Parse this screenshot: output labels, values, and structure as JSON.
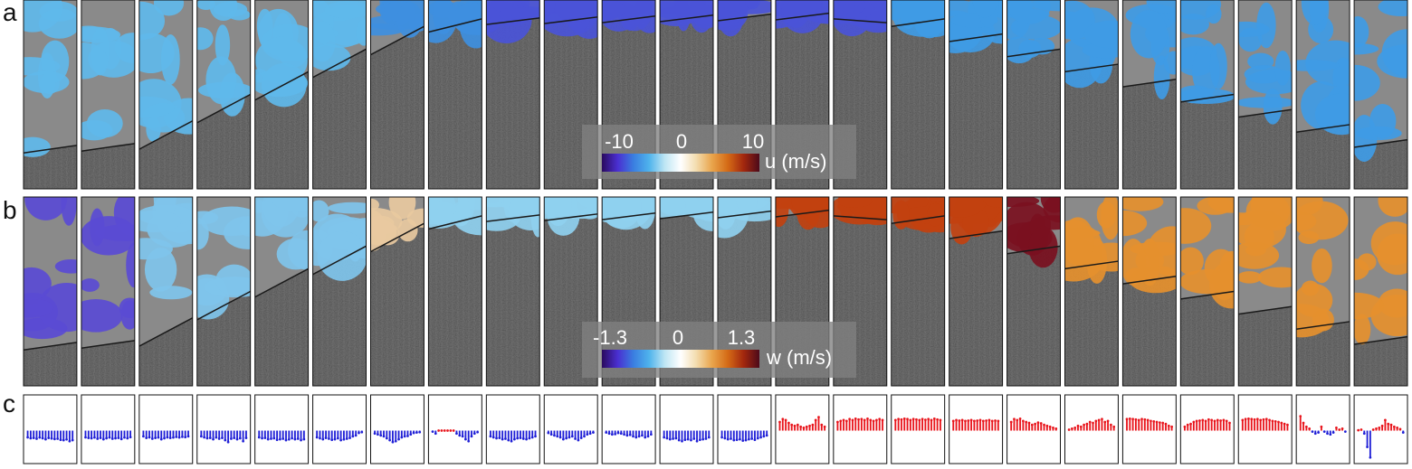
{
  "figure": {
    "panels": [
      "a",
      "b",
      "c"
    ],
    "frame_count": 24
  },
  "colormap": [
    "#2a0a5e",
    "#4a2fd1",
    "#3a7ee0",
    "#4fb3ec",
    "#bfe6f4",
    "#ffffff",
    "#f3dcae",
    "#e9a44b",
    "#d46a16",
    "#a2270e",
    "#4d0a1a"
  ],
  "colorbars": {
    "u": {
      "ticks": [
        "-10",
        "0",
        "10"
      ],
      "unit": "u (m/s)",
      "range": [
        -10,
        10
      ]
    },
    "w": {
      "ticks": [
        "-1.3",
        "0",
        "1.3"
      ],
      "unit": "w (m/s)",
      "range": [
        -1.3,
        1.3
      ]
    }
  },
  "chart_data": {
    "type": "bar",
    "title": "",
    "xlabel": "",
    "ylabel": "",
    "grid": false,
    "positive_color": "#e8141b",
    "negative_color": "#1f1fd6",
    "frames": [
      {
        "values": [
          -0.35,
          -0.4,
          -0.38,
          -0.42,
          -0.36,
          -0.4,
          -0.45,
          -0.38,
          -0.41,
          -0.44,
          -0.42,
          -0.48,
          -0.5,
          -0.46,
          -0.55,
          -0.5
        ]
      },
      {
        "values": [
          -0.35,
          -0.38,
          -0.4,
          -0.36,
          -0.42,
          -0.38,
          -0.45,
          -0.4,
          -0.36,
          -0.42,
          -0.4,
          -0.38,
          -0.44,
          -0.36,
          -0.4,
          -0.34
        ]
      },
      {
        "values": [
          -0.3,
          -0.38,
          -0.35,
          -0.42,
          -0.38,
          -0.36,
          -0.45,
          -0.4,
          -0.35,
          -0.38,
          -0.36,
          -0.33,
          -0.36,
          -0.32,
          -0.34,
          -0.3
        ]
      },
      {
        "values": [
          -0.3,
          -0.35,
          -0.4,
          -0.38,
          -0.45,
          -0.36,
          -0.42,
          -0.38,
          -0.5,
          -0.6,
          -0.42,
          -0.38,
          -0.45,
          -0.4,
          -0.55,
          -0.38
        ]
      },
      {
        "values": [
          -0.35,
          -0.4,
          -0.38,
          -0.45,
          -0.42,
          -0.4,
          -0.48,
          -0.45,
          -0.42,
          -0.5,
          -0.46,
          -0.4,
          -0.45,
          -0.42,
          -0.5,
          -0.45
        ]
      },
      {
        "values": [
          -0.35,
          -0.4,
          -0.45,
          -0.38,
          -0.42,
          -0.48,
          -0.45,
          -0.4,
          -0.5,
          -0.46,
          -0.42,
          -0.38,
          -0.3,
          -0.25,
          -0.12,
          -0.08
        ]
      },
      {
        "values": [
          -0.15,
          -0.2,
          -0.25,
          -0.3,
          -0.4,
          -0.5,
          -0.6,
          -0.55,
          -0.45,
          -0.35,
          -0.3,
          -0.28,
          -0.2,
          -0.12,
          -0.1,
          -0.08
        ]
      },
      {
        "values": [
          -0.05,
          -0.15,
          0,
          0,
          0,
          0,
          0,
          0,
          -0.15,
          -0.25,
          -0.3,
          -0.45,
          -0.55,
          -0.3,
          -0.15,
          -0.08
        ]
      },
      {
        "values": [
          -0.3,
          -0.35,
          -0.4,
          -0.38,
          -0.45,
          -0.42,
          -0.5,
          -0.55,
          -0.45,
          -0.4,
          -0.38,
          -0.42,
          -0.45,
          -0.4,
          -0.35,
          -0.3
        ]
      },
      {
        "values": [
          -0.12,
          -0.2,
          -0.25,
          -0.3,
          -0.35,
          -0.45,
          -0.4,
          -0.35,
          -0.3,
          -0.42,
          -0.5,
          -0.38,
          -0.3,
          -0.2,
          -0.15,
          -0.1
        ]
      },
      {
        "values": [
          -0.1,
          -0.15,
          -0.2,
          -0.18,
          -0.12,
          -0.15,
          -0.2,
          -0.25,
          -0.22,
          -0.3,
          -0.35,
          -0.3,
          -0.25,
          -0.35,
          -0.3,
          -0.2
        ]
      },
      {
        "values": [
          -0.35,
          -0.4,
          -0.45,
          -0.42,
          -0.4,
          -0.5,
          -0.55,
          -0.48,
          -0.45,
          -0.5,
          -0.42,
          -0.55,
          -0.48,
          -0.45,
          -0.42,
          -0.35
        ]
      },
      {
        "values": [
          -0.35,
          -0.4,
          -0.45,
          -0.42,
          -0.5,
          -0.48,
          -0.45,
          -0.52,
          -0.5,
          -0.45,
          -0.42,
          -0.48,
          -0.4,
          -0.35,
          -0.3,
          -0.25
        ]
      },
      {
        "values": [
          0.45,
          0.6,
          0.55,
          0.4,
          0.3,
          0.25,
          0.3,
          0.2,
          0.15,
          0.2,
          0.25,
          0.3,
          0.55,
          0.7,
          0.3,
          0.2
        ]
      },
      {
        "values": [
          0.45,
          0.5,
          0.55,
          0.5,
          0.6,
          0.55,
          0.62,
          0.58,
          0.6,
          0.55,
          0.62,
          0.55,
          0.5,
          0.55,
          0.6,
          0.55
        ]
      },
      {
        "values": [
          0.55,
          0.6,
          0.58,
          0.62,
          0.6,
          0.55,
          0.6,
          0.58,
          0.55,
          0.6,
          0.56,
          0.6,
          0.55,
          0.62,
          0.58,
          0.55
        ]
      },
      {
        "values": [
          0.5,
          0.55,
          0.52,
          0.55,
          0.5,
          0.52,
          0.55,
          0.5,
          0.52,
          0.55,
          0.5,
          0.52,
          0.55,
          0.5,
          0.52,
          0.5
        ]
      },
      {
        "values": [
          0.45,
          0.6,
          0.55,
          0.62,
          0.5,
          0.45,
          0.4,
          0.3,
          0.35,
          0.42,
          0.38,
          0.3,
          0.25,
          0.2,
          0.15,
          0.1
        ]
      },
      {
        "values": [
          0.05,
          0.1,
          0.15,
          0.25,
          0.2,
          0.3,
          0.35,
          0.45,
          0.4,
          0.5,
          0.55,
          0.6,
          0.45,
          0.5,
          0.3,
          0.2
        ]
      },
      {
        "values": [
          0.6,
          0.62,
          0.6,
          0.58,
          0.55,
          0.6,
          0.58,
          0.55,
          0.5,
          0.48,
          0.45,
          0.42,
          0.4,
          0.35,
          0.25,
          0.2
        ]
      },
      {
        "values": [
          0.2,
          0.3,
          0.35,
          0.45,
          0.5,
          0.52,
          0.55,
          0.5,
          0.58,
          0.55,
          0.5,
          0.55,
          0.52,
          0.55,
          0.5,
          0.4
        ]
      },
      {
        "values": [
          0.55,
          0.6,
          0.62,
          0.6,
          0.58,
          0.6,
          0.55,
          0.58,
          0.6,
          0.55,
          0.5,
          0.48,
          0.45,
          0.4,
          0.35,
          0.3
        ]
      },
      {
        "values": [
          0.75,
          0.4,
          0.2,
          0.1,
          -0.05,
          -0.15,
          -0.1,
          0.2,
          -0.05,
          -0.15,
          -0.2,
          -0.1,
          0.15,
          0.05,
          0.1,
          -0.05
        ]
      },
      {
        "values": [
          0.02,
          0.05,
          -0.15,
          -0.85,
          -1.4,
          0.05,
          0.1,
          0.15,
          0.25,
          0.55,
          0.35,
          0.3,
          0.2,
          0.15,
          0.08,
          -0.1
        ]
      }
    ]
  }
}
